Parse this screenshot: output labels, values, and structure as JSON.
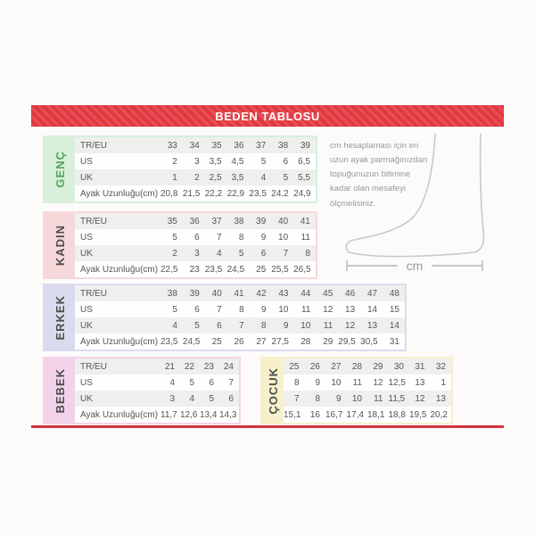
{
  "header": {
    "title": "BEDEN TABLOSU"
  },
  "colors": {
    "accent_red": "#e2383f",
    "bottom_rule_red": "#d2343e",
    "row_stripe_gray": "#efefee",
    "genc_theme": "#d9efda",
    "genc_label_color": "#55a45e",
    "kadin_theme": "#f7d8da",
    "erkek_theme": "#dbdbf0",
    "bebek_theme": "#f3d3ea",
    "cocuk_theme": "#f6f1cb",
    "dark_label_color": "#4d4d4d"
  },
  "info": {
    "text": "cm hesaplaması için en uzun ayak parmağınızdan topuğunuzun bitimine kadar olan mesafeyi ölçmelisiniz.",
    "cm_label": "cm"
  },
  "chart_data": [
    {
      "type": "table",
      "id": "genc",
      "title": "GENÇ",
      "theme": {
        "bg": "#d9efda",
        "label_color": "#55a45e"
      },
      "row_labels": [
        "TR/EU",
        "US",
        "UK",
        "Ayak Uzunluğu(cm)"
      ],
      "rows": [
        [
          "33",
          "34",
          "35",
          "36",
          "37",
          "38",
          "39"
        ],
        [
          "2",
          "3",
          "3,5",
          "4,5",
          "5",
          "6",
          "6,5"
        ],
        [
          "1",
          "2",
          "2,5",
          "3,5",
          "4",
          "5",
          "5,5"
        ],
        [
          "20,8",
          "21,5",
          "22,2",
          "22,9",
          "23,5",
          "24,2",
          "24,9"
        ]
      ]
    },
    {
      "type": "table",
      "id": "kadin",
      "title": "KADIN",
      "theme": {
        "bg": "#f7d8da",
        "label_color": "#4d4d4d"
      },
      "row_labels": [
        "TR/EU",
        "US",
        "UK",
        "Ayak Uzunluğu(cm)"
      ],
      "rows": [
        [
          "35",
          "36",
          "37",
          "38",
          "39",
          "40",
          "41"
        ],
        [
          "5",
          "6",
          "7",
          "8",
          "9",
          "10",
          "11"
        ],
        [
          "2",
          "3",
          "4",
          "5",
          "6",
          "7",
          "8"
        ],
        [
          "22,5",
          "23",
          "23,5",
          "24,5",
          "25",
          "25,5",
          "26,5"
        ]
      ]
    },
    {
      "type": "table",
      "id": "erkek",
      "title": "ERKEK",
      "theme": {
        "bg": "#dbdbf0",
        "label_color": "#4d4d4d"
      },
      "row_labels": [
        "TR/EU",
        "US",
        "UK",
        "Ayak Uzunluğu(cm)"
      ],
      "rows": [
        [
          "38",
          "39",
          "40",
          "41",
          "42",
          "43",
          "44",
          "45",
          "46",
          "47",
          "48"
        ],
        [
          "5",
          "6",
          "7",
          "8",
          "9",
          "10",
          "11",
          "12",
          "13",
          "14",
          "15"
        ],
        [
          "4",
          "5",
          "6",
          "7",
          "8",
          "9",
          "10",
          "11",
          "12",
          "13",
          "14"
        ],
        [
          "23,5",
          "24,5",
          "25",
          "26",
          "27",
          "27,5",
          "28",
          "29",
          "29,5",
          "30,5",
          "31"
        ]
      ]
    },
    {
      "type": "table",
      "id": "bebek",
      "title": "BEBEK",
      "theme": {
        "bg": "#f3d3ea",
        "label_color": "#4d4d4d"
      },
      "row_labels": [
        "TR/EU",
        "US",
        "UK",
        "Ayak Uzunluğu(cm)"
      ],
      "rows": [
        [
          "21",
          "22",
          "23",
          "24"
        ],
        [
          "4",
          "5",
          "6",
          "7"
        ],
        [
          "3",
          "4",
          "5",
          "6"
        ],
        [
          "11,7",
          "12,6",
          "13,4",
          "14,3"
        ]
      ]
    },
    {
      "type": "table",
      "id": "cocuk",
      "title": "ÇOCUK",
      "theme": {
        "bg": "#f6f1cb",
        "label_color": "#4d4d4d"
      },
      "row_labels": null,
      "rows": [
        [
          "25",
          "26",
          "27",
          "28",
          "29",
          "30",
          "31",
          "32"
        ],
        [
          "8",
          "9",
          "10",
          "11",
          "12",
          "12,5",
          "13",
          "1"
        ],
        [
          "7",
          "8",
          "9",
          "10",
          "11",
          "11,5",
          "12",
          "13"
        ],
        [
          "15,1",
          "16",
          "16,7",
          "17,4",
          "18,1",
          "18,8",
          "19,5",
          "20,2"
        ]
      ]
    }
  ]
}
